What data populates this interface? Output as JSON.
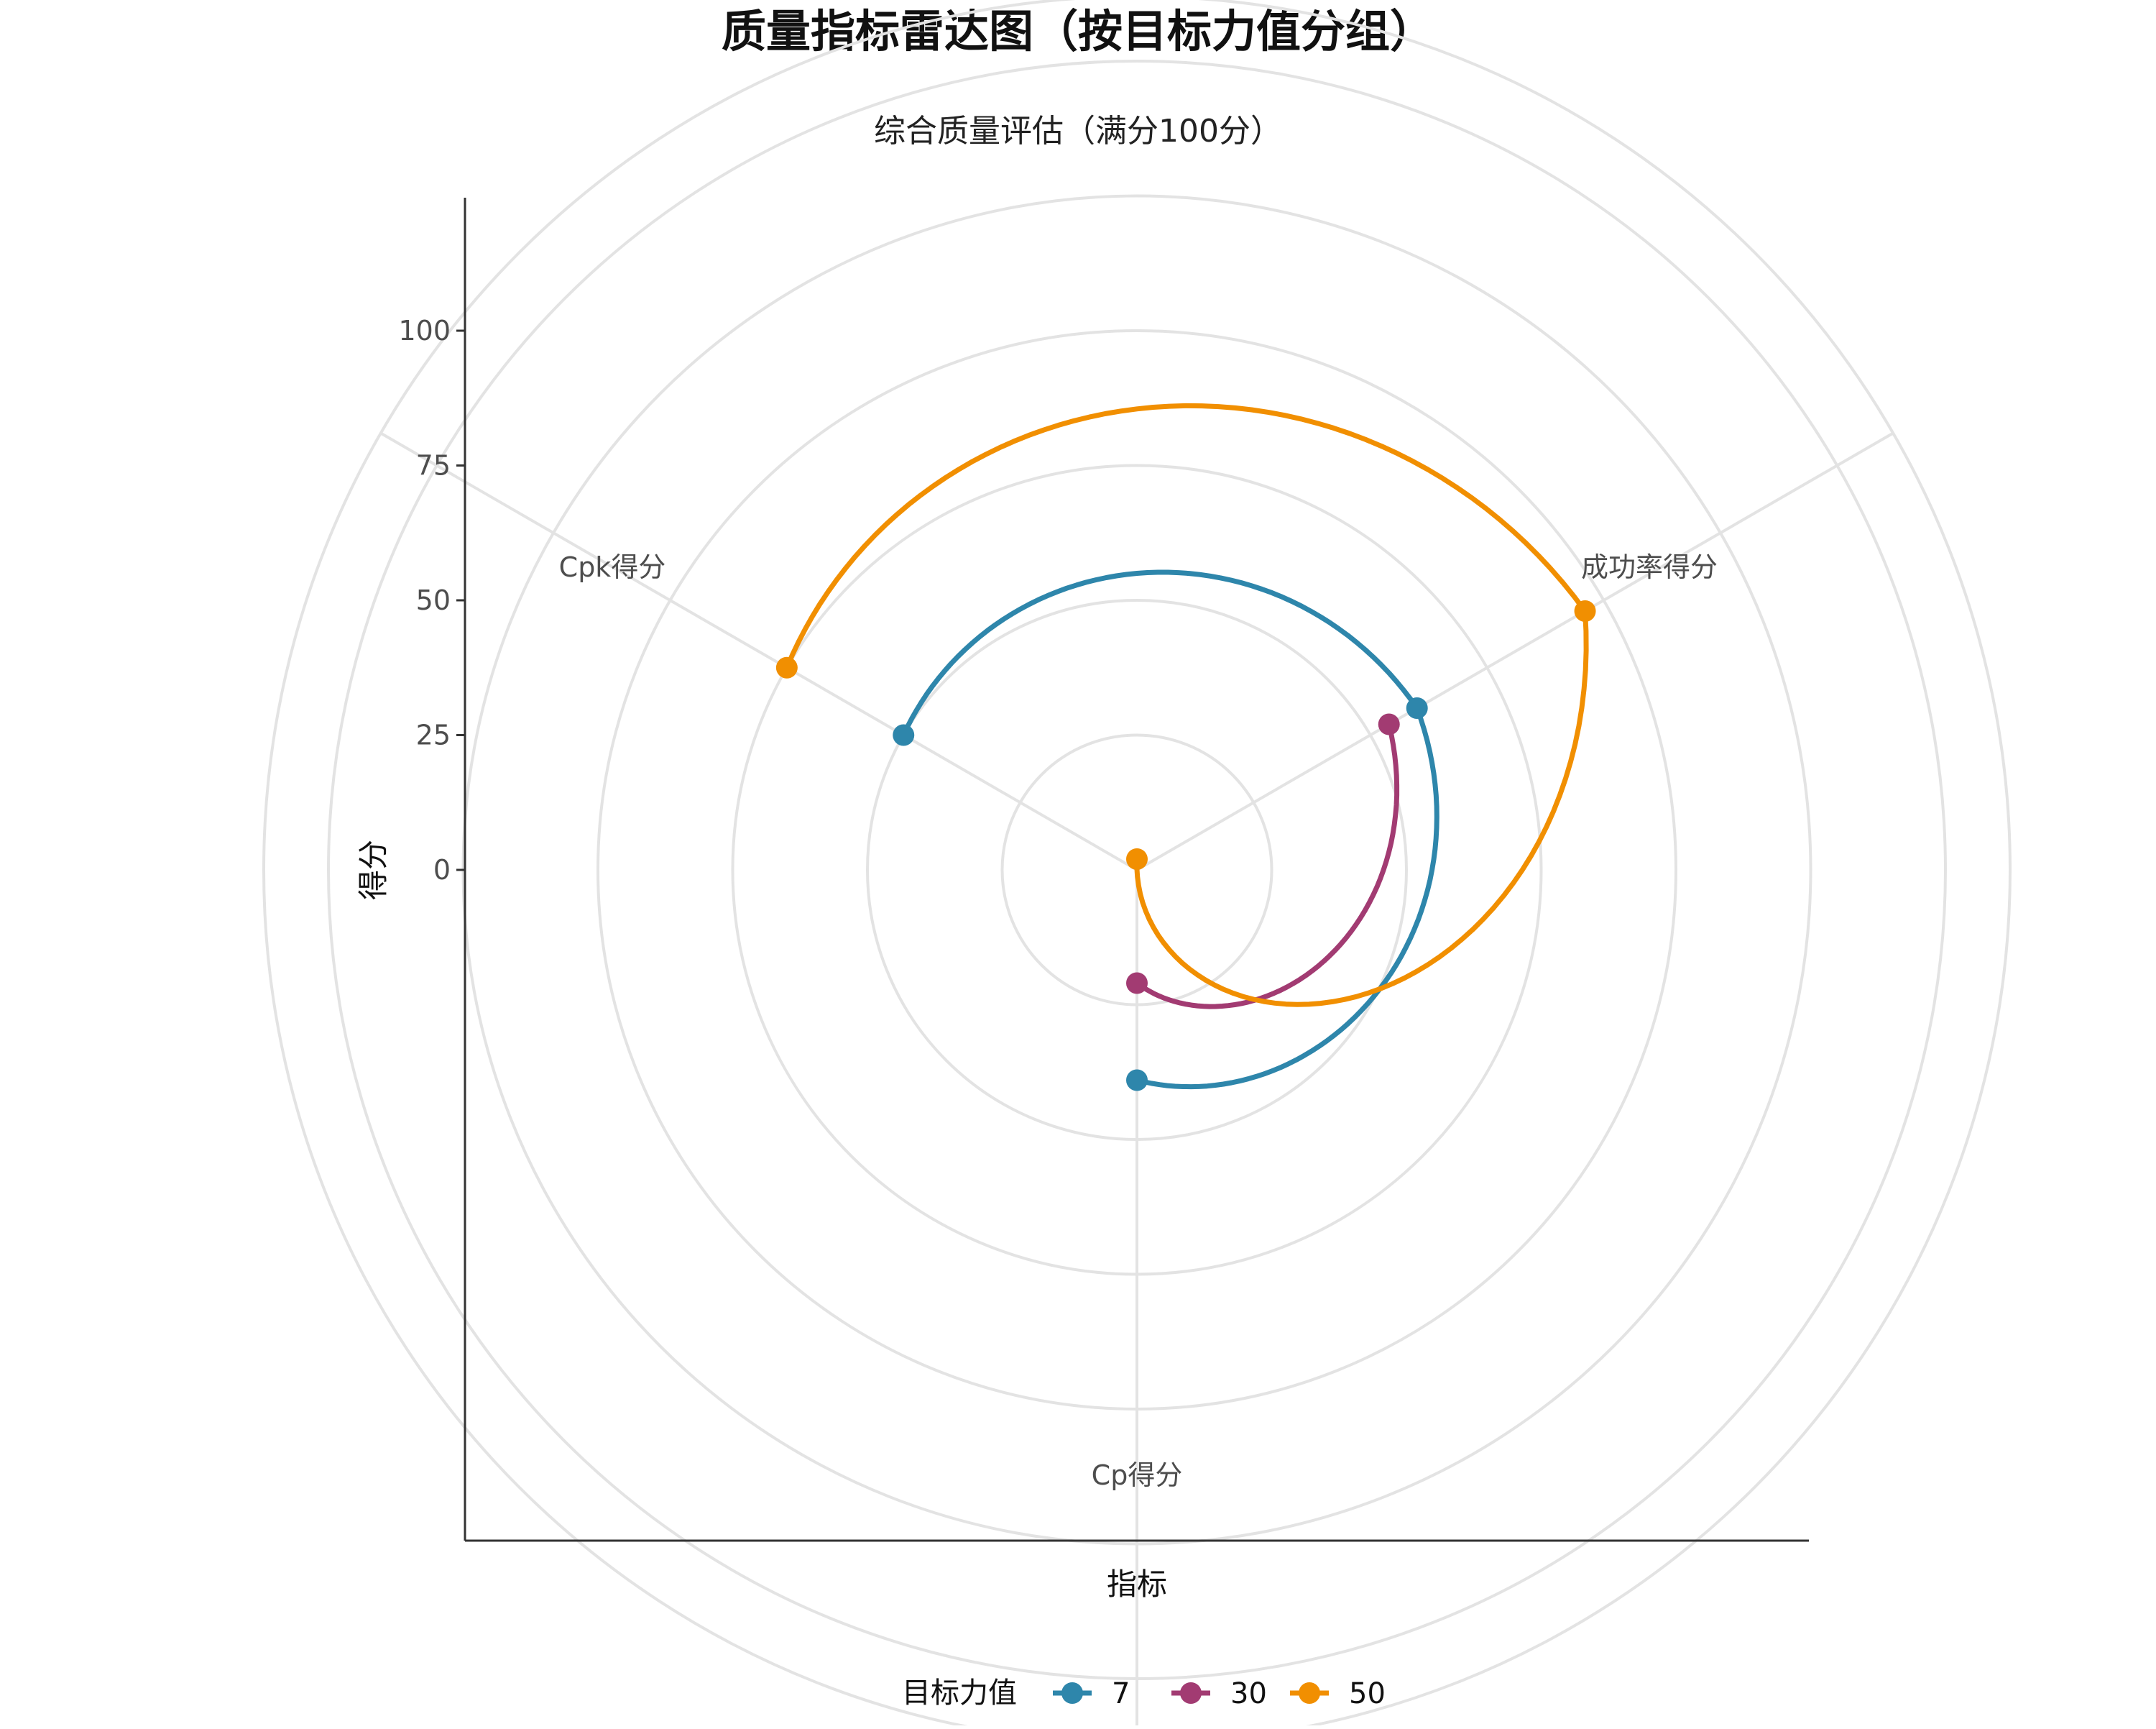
{
  "chart_data": {
    "type": "radar",
    "title": "质量指标雷达图（按目标力值分组）",
    "subtitle": "综合质量评估（满分100分）",
    "xlabel": "指标",
    "ylabel": "得分",
    "categories": [
      "Cp得分",
      "成功率得分",
      "Cpk得分"
    ],
    "y_ticks": [
      0,
      25,
      50,
      75,
      100
    ],
    "ylim": [
      -50,
      125
    ],
    "grid_rings": [
      -25,
      0,
      25,
      50,
      75,
      100,
      112
    ],
    "legend_title": "目标力值",
    "legend_position": "bottom",
    "series": [
      {
        "name": "7",
        "color": "#2e86ab",
        "values": [
          -11,
          10,
          0
        ]
      },
      {
        "name": "30",
        "color": "#a23b72",
        "values": [
          -29,
          4,
          null
        ]
      },
      {
        "name": "50",
        "color": "#f18f01",
        "values": [
          -52,
          46,
          25
        ]
      }
    ]
  }
}
